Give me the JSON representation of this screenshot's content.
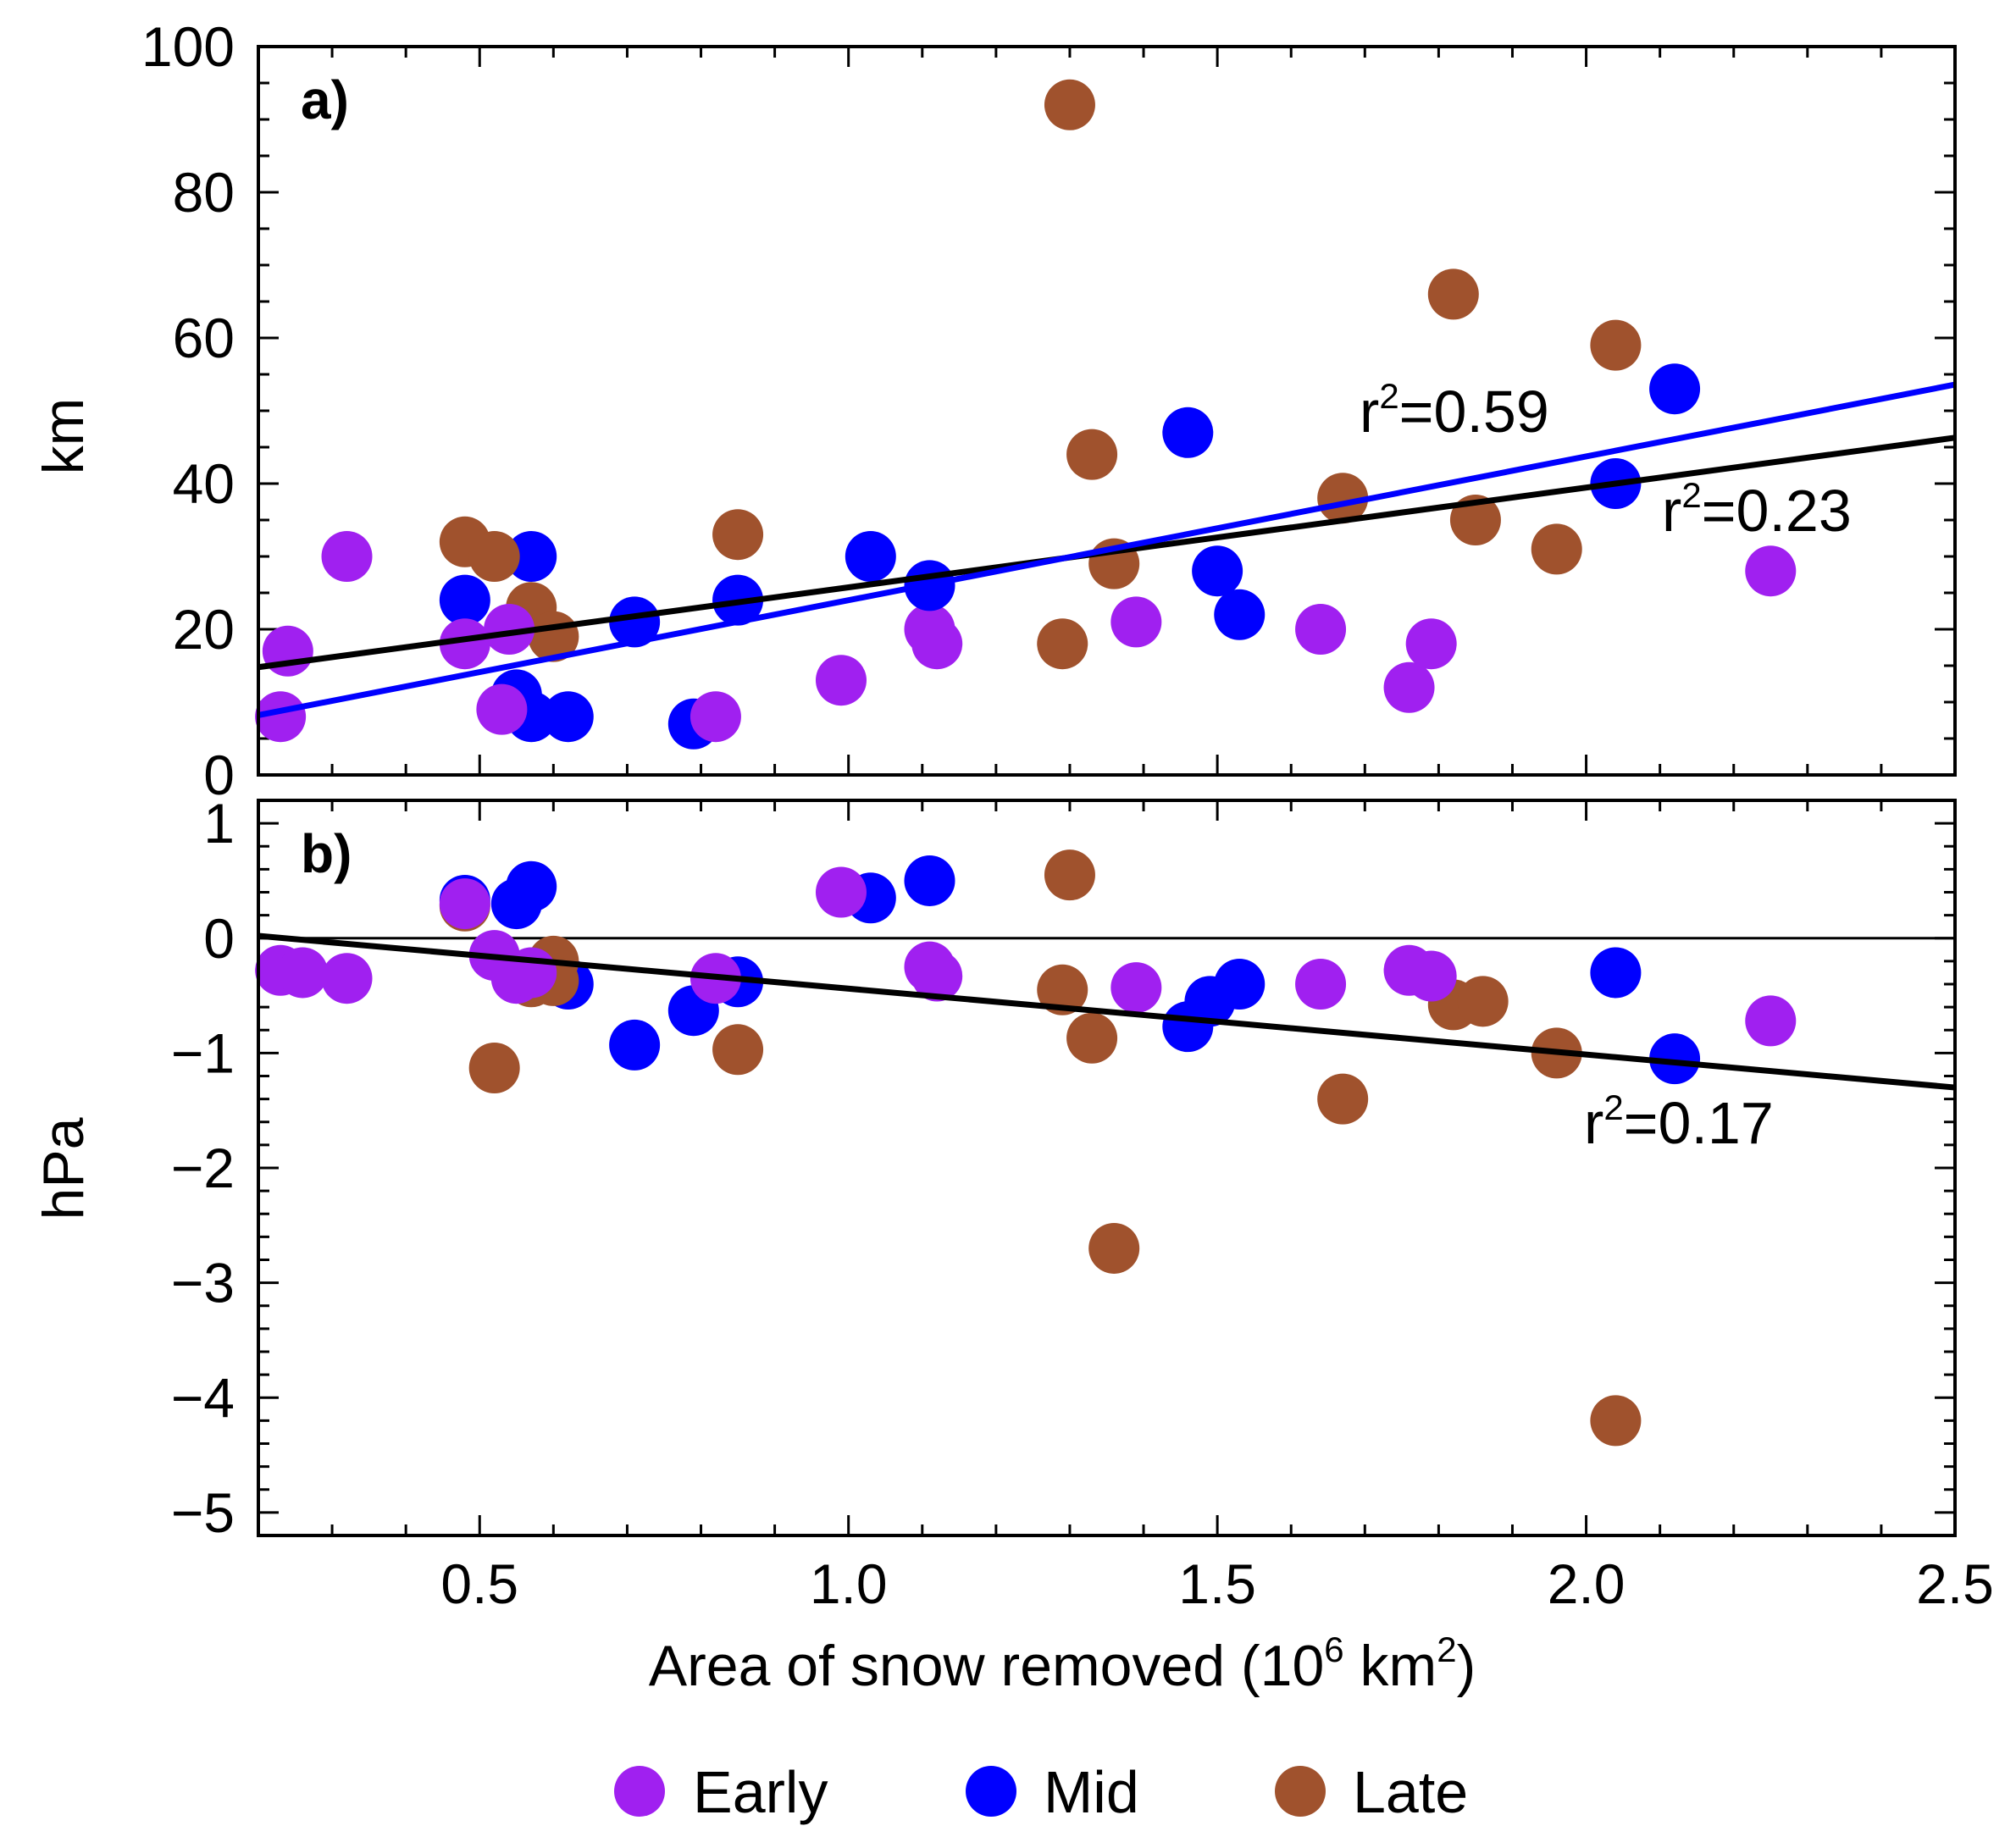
{
  "figure": {
    "xlabel": {
      "prefix": "Area of snow removed (10",
      "sup1": "6",
      "mid": " km",
      "sup2": "2",
      "suffix": ")"
    },
    "xticks": [
      "0.5",
      "1.0",
      "1.5",
      "2.0",
      "2.5"
    ],
    "legend": [
      {
        "label": "Early",
        "color": "#a020f0"
      },
      {
        "label": "Mid",
        "color": "#0000ff"
      },
      {
        "label": "Late",
        "color": "#a0522d"
      }
    ],
    "colors": {
      "Early": "#a020f0",
      "Mid": "#0000ff",
      "Late": "#a0522d"
    }
  },
  "chart_data": [
    {
      "type": "scatter",
      "panel_label": "a)",
      "ylabel": "km",
      "xlim": [
        0.2,
        2.5
      ],
      "ylim": [
        0,
        100
      ],
      "yticks": [
        "0",
        "20",
        "40",
        "60",
        "80",
        "100"
      ],
      "series": [
        {
          "name": "Early",
          "points": [
            [
              0.24,
              17
            ],
            [
              0.23,
              8
            ],
            [
              0.32,
              30
            ],
            [
              0.48,
              18
            ],
            [
              0.53,
              9
            ],
            [
              0.54,
              20
            ],
            [
              0.99,
              13
            ],
            [
              0.82,
              8
            ],
            [
              1.11,
              20
            ],
            [
              1.12,
              18
            ],
            [
              1.39,
              21
            ],
            [
              1.64,
              20
            ],
            [
              1.76,
              12
            ],
            [
              1.79,
              18
            ],
            [
              2.25,
              28
            ]
          ]
        },
        {
          "name": "Mid",
          "points": [
            [
              0.48,
              24
            ],
            [
              0.57,
              30
            ],
            [
              0.55,
              11
            ],
            [
              0.57,
              8
            ],
            [
              0.62,
              8
            ],
            [
              0.71,
              21
            ],
            [
              0.79,
              7
            ],
            [
              0.85,
              24
            ],
            [
              1.03,
              30
            ],
            [
              1.11,
              26
            ],
            [
              1.46,
              47
            ],
            [
              1.5,
              28
            ],
            [
              1.53,
              22
            ],
            [
              2.04,
              40
            ],
            [
              2.12,
              53
            ]
          ]
        },
        {
          "name": "Late",
          "points": [
            [
              0.48,
              32
            ],
            [
              0.52,
              30
            ],
            [
              0.57,
              23
            ],
            [
              0.6,
              19
            ],
            [
              0.85,
              33
            ],
            [
              1.3,
              92
            ],
            [
              1.33,
              44
            ],
            [
              1.36,
              29
            ],
            [
              1.29,
              18
            ],
            [
              1.67,
              38
            ],
            [
              1.82,
              66
            ],
            [
              1.85,
              35
            ],
            [
              1.96,
              31
            ],
            [
              2.04,
              59
            ]
          ]
        }
      ],
      "fits": [
        {
          "name": "black-fit",
          "color": "#000000",
          "x": [
            0.2,
            2.5
          ],
          "y": [
            14.8,
            46.3
          ],
          "label": "r²=0.23",
          "label_pos": [
            2.2,
            35.5
          ]
        },
        {
          "name": "blue-fit",
          "color": "#0000ff",
          "x": [
            0.2,
            2.5
          ],
          "y": [
            8.2,
            53.6
          ],
          "label": "r²=0.59",
          "label_pos": [
            1.9,
            47
          ]
        }
      ],
      "labels": {
        "r2_black": {
          "base": "r",
          "sup": "2",
          "rest": "=0.23"
        },
        "r2_blue": {
          "base": "r",
          "sup": "2",
          "rest": "=0.59"
        }
      }
    },
    {
      "type": "scatter",
      "panel_label": "b)",
      "ylabel": "hPa",
      "xlim": [
        0.2,
        2.5
      ],
      "ylim": [
        -5.2,
        1.2
      ],
      "yticks": [
        "1",
        "0",
        "−1",
        "−2",
        "−3",
        "−4",
        "−5"
      ],
      "zero_line": true,
      "series": [
        {
          "name": "Early",
          "points": [
            [
              0.23,
              -0.28
            ],
            [
              0.26,
              -0.3
            ],
            [
              0.32,
              -0.35
            ],
            [
              0.48,
              0.3
            ],
            [
              0.52,
              -0.15
            ],
            [
              0.55,
              -0.35
            ],
            [
              0.57,
              -0.3
            ],
            [
              0.82,
              -0.35
            ],
            [
              0.99,
              0.4
            ],
            [
              1.11,
              -0.25
            ],
            [
              1.12,
              -0.33
            ],
            [
              1.39,
              -0.43
            ],
            [
              1.64,
              -0.4
            ],
            [
              1.76,
              -0.28
            ],
            [
              1.79,
              -0.33
            ],
            [
              2.25,
              -0.72
            ]
          ]
        },
        {
          "name": "Mid",
          "points": [
            [
              0.48,
              0.33
            ],
            [
              0.55,
              0.3
            ],
            [
              0.57,
              0.45
            ],
            [
              0.62,
              -0.4
            ],
            [
              0.71,
              -0.93
            ],
            [
              0.79,
              -0.63
            ],
            [
              0.85,
              -0.38
            ],
            [
              1.03,
              0.35
            ],
            [
              1.11,
              0.5
            ],
            [
              1.46,
              -0.77
            ],
            [
              1.49,
              -0.55
            ],
            [
              1.53,
              -0.4
            ],
            [
              2.04,
              -0.3
            ],
            [
              2.12,
              -1.05
            ]
          ]
        },
        {
          "name": "Late",
          "points": [
            [
              0.48,
              0.28
            ],
            [
              0.52,
              -1.13
            ],
            [
              0.57,
              -0.38
            ],
            [
              0.6,
              -0.2
            ],
            [
              0.6,
              -0.37
            ],
            [
              0.85,
              -0.97
            ],
            [
              1.3,
              0.55
            ],
            [
              1.29,
              -0.45
            ],
            [
              1.33,
              -0.87
            ],
            [
              1.36,
              -2.7
            ],
            [
              1.67,
              -1.4
            ],
            [
              1.82,
              -0.58
            ],
            [
              1.86,
              -0.55
            ],
            [
              1.96,
              -1.0
            ],
            [
              2.04,
              -4.2
            ]
          ]
        }
      ],
      "fits": [
        {
          "name": "black-fit",
          "color": "#000000",
          "x": [
            0.2,
            2.5
          ],
          "y": [
            0.02,
            -1.3
          ],
          "label": "r²=0.17",
          "label_pos": [
            2.1,
            -1.6
          ]
        }
      ],
      "labels": {
        "r2_black": {
          "base": "r",
          "sup": "2",
          "rest": "=0.17"
        }
      }
    }
  ]
}
